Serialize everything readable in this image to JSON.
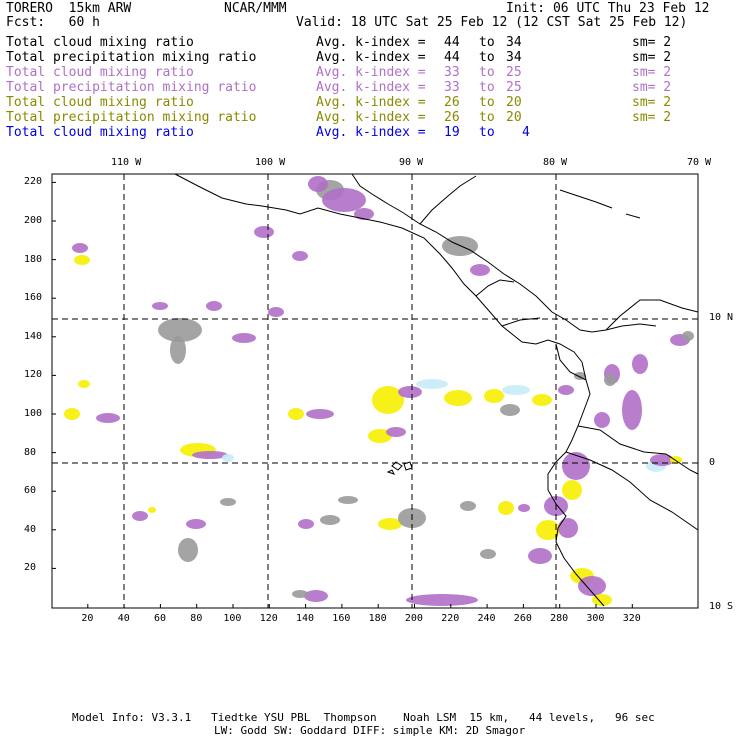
{
  "header": {
    "left_line1": "TORERO  15km ARW",
    "center_line1": "NCAR/MMM",
    "right_line1": "Init: 06 UTC Thu 23 Feb 12",
    "left_line2": "Fcst:   60 h",
    "right_line2": "Valid: 18 UTC Sat 25 Feb 12 (12 CST Sat 25 Feb 12)"
  },
  "legend": [
    {
      "name": "Total cloud mixing ratio",
      "kindex": "Avg. k-index =",
      "from": "44",
      "to_word": "to",
      "to": "34",
      "sm": "sm= 2",
      "color": "#000000"
    },
    {
      "name": "Total precipitation mixing ratio",
      "kindex": "Avg. k-index =",
      "from": "44",
      "to_word": "to",
      "to": "34",
      "sm": "sm= 2",
      "color": "#000000"
    },
    {
      "name": "Total cloud mixing ratio",
      "kindex": "Avg. k-index =",
      "from": "33",
      "to_word": "to",
      "to": "25",
      "sm": "sm= 2",
      "color": "#b070c8"
    },
    {
      "name": "Total precipitation mixing ratio",
      "kindex": "Avg. k-index =",
      "from": "33",
      "to_word": "to",
      "to": "25",
      "sm": "sm= 2",
      "color": "#b070c8"
    },
    {
      "name": "Total cloud mixing ratio",
      "kindex": "Avg. k-index =",
      "from": "26",
      "to_word": "to",
      "to": "20",
      "sm": "sm= 2",
      "color": "#8a8a00"
    },
    {
      "name": "Total precipitation mixing ratio",
      "kindex": "Avg. k-index =",
      "from": "26",
      "to_word": "to",
      "to": "20",
      "sm": "sm= 2",
      "color": "#8a8a00"
    },
    {
      "name": "Total cloud mixing ratio",
      "kindex": "Avg. k-index =",
      "from": "19",
      "to_word": "to",
      "to": "4",
      "sm": "",
      "color": "#0000e0"
    }
  ],
  "map": {
    "top_longitude_labels": [
      "110 W",
      "100 W",
      "90 W",
      "80 W",
      "70 W"
    ],
    "right_latitude_labels": [
      "10 N",
      "0",
      "10 S"
    ],
    "y_tick_labels": [
      "220",
      "200",
      "180",
      "160",
      "140",
      "120",
      "100",
      "80",
      "60",
      "40",
      "20"
    ],
    "x_tick_labels": [
      "20",
      "40",
      "60",
      "80",
      "100",
      "120",
      "140",
      "160",
      "180",
      "200",
      "220",
      "240",
      "260",
      "280",
      "300",
      "320"
    ],
    "colors": {
      "gray": "#9a9a9a",
      "purple": "#b070c8",
      "yellow": "#f6f000",
      "cyan": "#c8ecf8",
      "coast": "#000000"
    }
  },
  "footer": {
    "line1": "Model Info: V3.3.1   Tiedtke YSU PBL  Thompson    Noah LSM  15 km,   44 levels,   96 sec",
    "line2": "LW: Godd SW: Goddard DIFF: simple KM: 2D Smagor"
  }
}
